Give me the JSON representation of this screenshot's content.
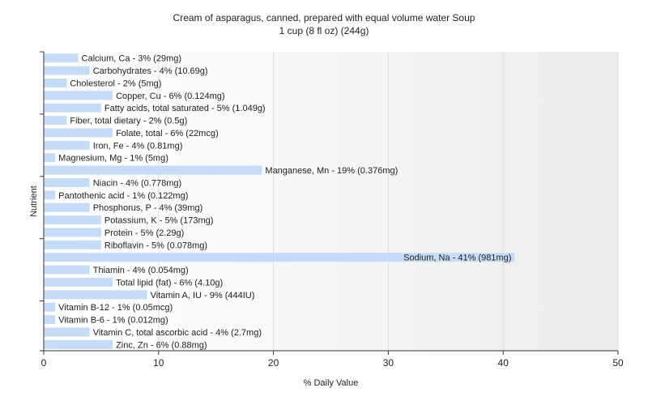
{
  "chart_data": {
    "type": "bar",
    "orientation": "horizontal",
    "title": "Cream of asparagus, canned, prepared with equal volume water Soup",
    "subtitle": "1 cup (8 fl oz) (244g)",
    "xlabel": "% Daily Value",
    "ylabel": "Nutrient",
    "xlim": [
      0,
      50
    ],
    "xticks": [
      0,
      10,
      20,
      30,
      40,
      50
    ],
    "grid": true,
    "bar_color": "#c6dcf6",
    "categories": [
      "Calcium, Ca",
      "Carbohydrates",
      "Cholesterol",
      "Copper, Cu",
      "Fatty acids, total saturated",
      "Fiber, total dietary",
      "Folate, total",
      "Iron, Fe",
      "Magnesium, Mg",
      "Manganese, Mn",
      "Niacin",
      "Pantothenic acid",
      "Phosphorus, P",
      "Potassium, K",
      "Protein",
      "Riboflavin",
      "Sodium, Na",
      "Thiamin",
      "Total lipid (fat)",
      "Vitamin A, IU",
      "Vitamin B-12",
      "Vitamin B-6",
      "Vitamin C, total ascorbic acid",
      "Zinc, Zn"
    ],
    "values": [
      3,
      4,
      2,
      6,
      5,
      2,
      6,
      4,
      1,
      19,
      4,
      1,
      4,
      5,
      5,
      5,
      41,
      4,
      6,
      9,
      1,
      1,
      4,
      6
    ],
    "labels": [
      "Calcium, Ca - 3% (29mg)",
      "Carbohydrates - 4% (10.69g)",
      "Cholesterol - 2% (5mg)",
      "Copper, Cu - 6% (0.124mg)",
      "Fatty acids, total saturated - 5% (1.049g)",
      "Fiber, total dietary - 2% (0.5g)",
      "Folate, total - 6% (22mcg)",
      "Iron, Fe - 4% (0.81mg)",
      "Magnesium, Mg - 1% (5mg)",
      "Manganese, Mn - 19% (0.376mg)",
      "Niacin - 4% (0.778mg)",
      "Pantothenic acid - 1% (0.122mg)",
      "Phosphorus, P - 4% (39mg)",
      "Potassium, K - 5% (173mg)",
      "Protein - 5% (2.29g)",
      "Riboflavin - 5% (0.078mg)",
      "Sodium, Na - 41% (981mg)",
      "Thiamin - 4% (0.054mg)",
      "Total lipid (fat) - 6% (4.10g)",
      "Vitamin A, IU - 9% (444IU)",
      "Vitamin B-12 - 1% (0.05mcg)",
      "Vitamin B-6 - 1% (0.012mg)",
      "Vitamin C, total ascorbic acid - 4% (2.7mg)",
      "Zinc, Zn - 6% (0.88mg)"
    ]
  }
}
